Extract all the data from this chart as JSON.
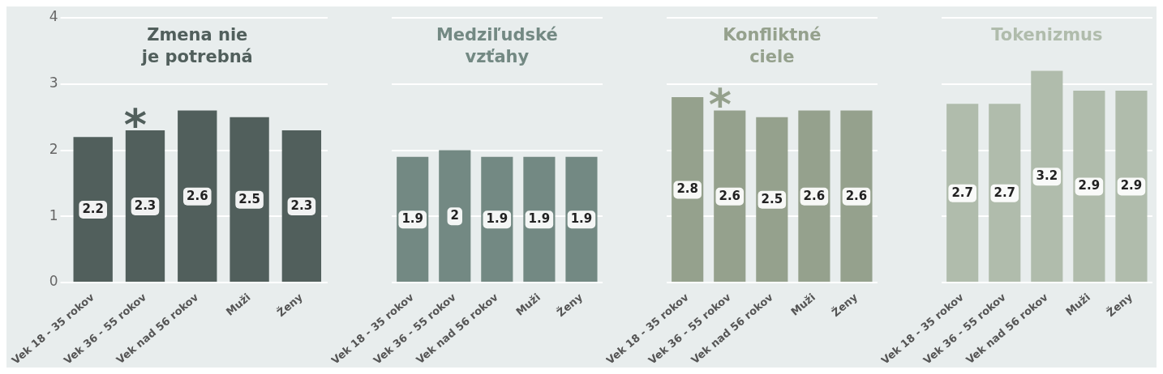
{
  "chart_data": [
    {
      "type": "bar",
      "title": "Zmena nie je potrebná",
      "categories": [
        "Vek 18 - 35 rokov",
        "Vek 36 - 55 rokov",
        "Vek nad 56 rokov",
        "Muži",
        "Ženy"
      ],
      "values": [
        2.2,
        2.3,
        2.6,
        2.5,
        2.3
      ],
      "color": "#515f5c",
      "ylim": [
        0,
        4
      ],
      "yticks": [
        0,
        1,
        2,
        3,
        4
      ],
      "grid": "y",
      "data_labels": true,
      "annotations": [
        {
          "text": "*",
          "x": "Vek 36 - 55 rokov",
          "y": 2.3
        }
      ]
    },
    {
      "type": "bar",
      "title": "Medziľudské vzťahy",
      "categories": [
        "Vek 18 - 35 rokov",
        "Vek 36 - 55 rokov",
        "Vek nad 56 rokov",
        "Muži",
        "Ženy"
      ],
      "values": [
        1.9,
        2,
        1.9,
        1.9,
        1.9
      ],
      "color": "#738983",
      "ylim": [
        0,
        4
      ],
      "yticks": [
        0,
        1,
        2,
        3,
        4
      ],
      "grid": "y",
      "data_labels": true,
      "tick_labels": "x"
    },
    {
      "type": "bar",
      "title": "Konfliktné ciele",
      "categories": [
        "Vek 18 - 35 rokov",
        "Vek 36 - 55 rokov",
        "Vek nad 56 rokov",
        "Muži",
        "Ženy"
      ],
      "values": [
        2.8,
        2.6,
        2.5,
        2.6,
        2.6
      ],
      "color": "#95a18d",
      "ylim": [
        0,
        4
      ],
      "yticks": [
        0,
        1,
        2,
        3,
        4
      ],
      "grid": "y",
      "data_labels": true,
      "tick_labels": "x",
      "annotations": [
        {
          "text": "*",
          "x": "Vek 36 - 55 rokov",
          "y": 2.6
        }
      ]
    },
    {
      "type": "bar",
      "title": "Tokenizmus",
      "categories": [
        "Vek 18 - 35 rokov",
        "Vek 36 - 55 rokov",
        "Vek nad 56 rokov",
        "Muži",
        "Ženy"
      ],
      "values": [
        2.7,
        2.7,
        3.2,
        2.9,
        2.9
      ],
      "color": "#b0bcac",
      "ylim": [
        0,
        4
      ],
      "yticks": [
        0,
        1,
        2,
        3,
        4
      ],
      "grid": "y",
      "data_labels": true,
      "tick_labels": "x"
    }
  ]
}
